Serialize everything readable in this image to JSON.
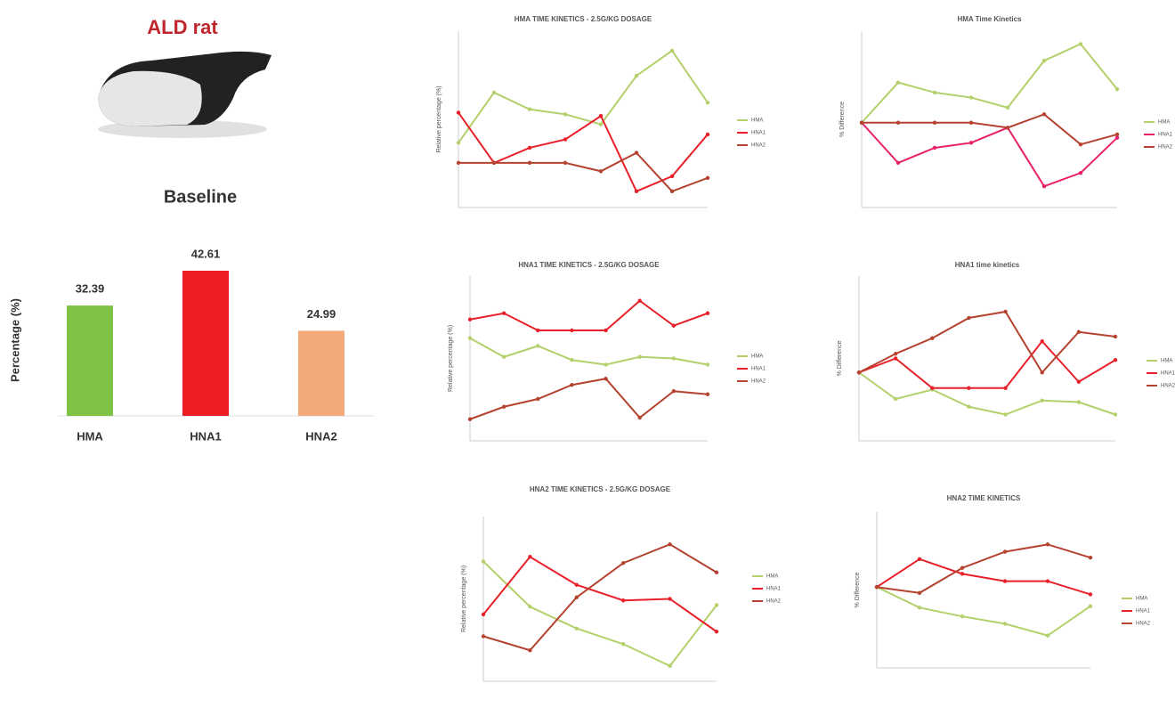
{
  "header": {
    "title": "ALD rat"
  },
  "chart_data": [
    {
      "type": "bar",
      "title": "Baseline",
      "y_label": "Percentage (%)",
      "categories": [
        "HMA",
        "HNA1",
        "HNA2"
      ],
      "values": [
        32.39,
        42.61,
        24.99
      ],
      "colors": [
        "#7dc242",
        "#ee1c24",
        "#f4a97a"
      ]
    },
    {
      "type": "line",
      "title": "HMA TIME KINETICS - 2.5G/KG DOSAGE",
      "y_label": "Relative percentage (%)",
      "ylim": [
        0,
        100
      ],
      "series": [
        {
          "name": "HMA",
          "color": "#b3d06a",
          "values": [
            36,
            66,
            56,
            53,
            47,
            76,
            91,
            60
          ]
        },
        {
          "name": "HNA1",
          "color": "#e8202a",
          "values": [
            54,
            24,
            33,
            38,
            52,
            7,
            16,
            41
          ]
        },
        {
          "name": "HNA2",
          "color": "#b5412f",
          "values": [
            24,
            24,
            24,
            24,
            19,
            30,
            7,
            15
          ]
        }
      ]
    },
    {
      "type": "line",
      "title": "HMA Time Kinetics",
      "y_label": "% Difference",
      "ylim": [
        0,
        100
      ],
      "series": [
        {
          "name": "HMA",
          "color": "#b3d06a",
          "values": [
            48,
            72,
            66,
            63,
            57,
            85,
            95,
            68
          ]
        },
        {
          "name": "HNA1",
          "color": "#e8206a",
          "values": [
            48,
            24,
            33,
            36,
            45,
            10,
            18,
            39
          ]
        },
        {
          "name": "HNA2",
          "color": "#b5412f",
          "values": [
            48,
            48,
            48,
            48,
            45,
            53,
            35,
            41
          ]
        }
      ]
    },
    {
      "type": "line",
      "title": "HNA1 TIME KINETICS - 2.5G/KG DOSAGE",
      "y_label": "Relative percentage (%)",
      "ylim": [
        0,
        100
      ],
      "series": [
        {
          "name": "HMA",
          "color": "#b3d06a",
          "values": [
            63,
            51,
            58,
            49,
            46,
            51,
            50,
            46
          ]
        },
        {
          "name": "HNA1",
          "color": "#e8202a",
          "values": [
            75,
            79,
            68,
            68,
            68,
            87,
            71,
            79
          ]
        },
        {
          "name": "HNA2",
          "color": "#b5412f",
          "values": [
            11,
            19,
            24,
            33,
            37,
            12,
            29,
            27
          ]
        }
      ]
    },
    {
      "type": "line",
      "title": "HNA1 time kinetics",
      "y_label": "% Difference",
      "ylim": [
        0,
        100
      ],
      "series": [
        {
          "name": "HMA",
          "color": "#b3d06a",
          "values": [
            41,
            24,
            30,
            19,
            14,
            23,
            22,
            14
          ]
        },
        {
          "name": "HNA1",
          "color": "#e8202a",
          "values": [
            41,
            50,
            31,
            31,
            31,
            61,
            35,
            49
          ]
        },
        {
          "name": "HNA2",
          "color": "#b5412f",
          "values": [
            41,
            53,
            63,
            76,
            80,
            41,
            67,
            64
          ]
        }
      ]
    },
    {
      "type": "line",
      "title": "HNA2 TIME KINETICS - 2.5G/KG DOSAGE",
      "y_label": "Relative percentage (%)",
      "ylim": [
        0,
        100
      ],
      "series": [
        {
          "name": "HMA",
          "color": "#b3d06a",
          "values": [
            74,
            45,
            31,
            21,
            7,
            46
          ]
        },
        {
          "name": "HNA1",
          "color": "#e8202a",
          "values": [
            40,
            77,
            59,
            49,
            50,
            29
          ]
        },
        {
          "name": "HNA2",
          "color": "#b5412f",
          "values": [
            26,
            17,
            51,
            73,
            85,
            67
          ]
        }
      ]
    },
    {
      "type": "line",
      "title": "HNA2 TIME KINETICS",
      "y_label": "% Difference",
      "ylim": [
        0,
        100
      ],
      "series": [
        {
          "name": "HMA",
          "color": "#b3d06a",
          "values": [
            52,
            38,
            32,
            27,
            19,
            39
          ]
        },
        {
          "name": "HNA1",
          "color": "#e8202a",
          "values": [
            52,
            71,
            61,
            56,
            56,
            47
          ]
        },
        {
          "name": "HNA2",
          "color": "#b5412f",
          "values": [
            52,
            48,
            65,
            76,
            81,
            72
          ]
        }
      ]
    }
  ]
}
